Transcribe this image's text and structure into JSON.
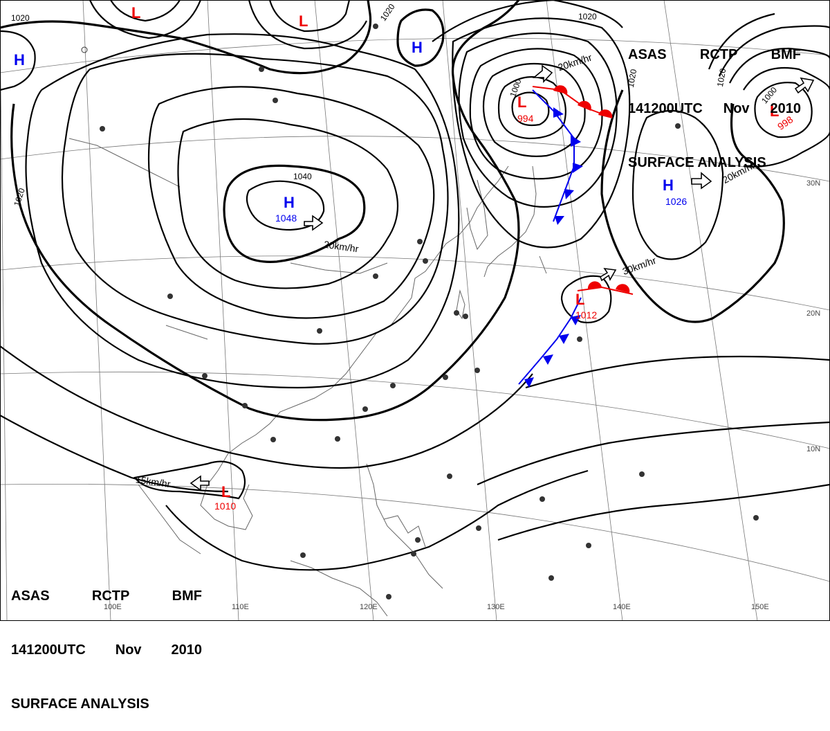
{
  "header": {
    "agency": "ASAS",
    "station": "RCTP",
    "office": "BMF",
    "time": "141200UTC",
    "month": "Nov",
    "year": "2010",
    "product": "SURFACE ANALYSIS"
  },
  "colors": {
    "high": "#0000ee",
    "low": "#ee0000",
    "isobar": "#000000",
    "grid": "#666666",
    "coast": "#555555"
  },
  "isobars": {
    "labels": [
      "1020",
      "1020",
      "1020",
      "1000",
      "1020",
      "1040",
      "1020",
      "1000",
      "1020"
    ]
  },
  "systems": {
    "highs": [
      {
        "letter": "H",
        "pressure": ""
      },
      {
        "letter": "H",
        "pressure": ""
      },
      {
        "letter": "H",
        "pressure": "1048"
      },
      {
        "letter": "H",
        "pressure": "1026"
      }
    ],
    "lows": [
      {
        "letter": "L",
        "pressure": ""
      },
      {
        "letter": "L",
        "pressure": ""
      },
      {
        "letter": "L",
        "pressure": "994"
      },
      {
        "letter": "L",
        "pressure": "998"
      },
      {
        "letter": "L",
        "pressure": "1012"
      },
      {
        "letter": "L",
        "pressure": "1010"
      }
    ]
  },
  "motions": [
    "20km/hr",
    "20km/hr",
    "20km/hr",
    "30km/hr",
    "15km/hr"
  ],
  "grid_labels": {
    "lon": [
      "100E",
      "110E",
      "120E",
      "130E",
      "140E",
      "150E"
    ],
    "lat": [
      "30N",
      "20N",
      "10N"
    ]
  }
}
